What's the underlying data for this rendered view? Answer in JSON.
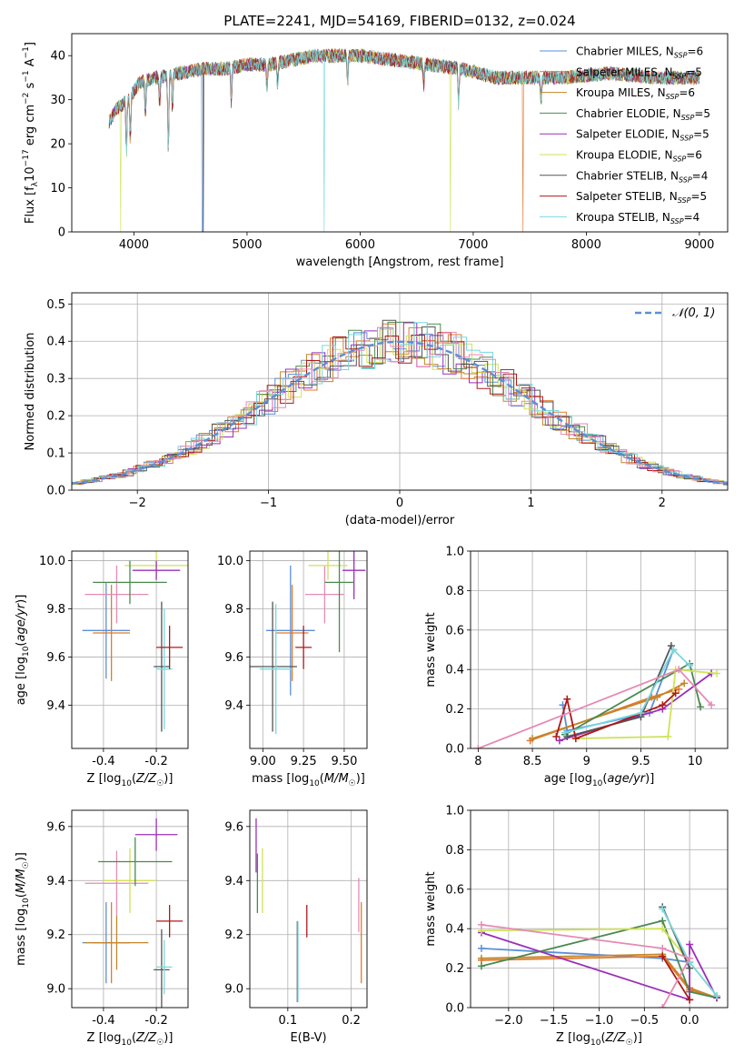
{
  "figure": {
    "title": "PLATE=2241, MJD=54169, FIBERID=0132, z=0.024"
  },
  "colors": {
    "Chabrier MILES": "#5a8fd8",
    "Salpeter MILES": "#e07a2e",
    "Kroupa MILES": "#c4862a",
    "Chabrier ELODIE": "#4a8a4e",
    "Salpeter ELODIE": "#9a2fb8",
    "Kroupa ELODIE": "#cfe25a",
    "Chabrier STELIB": "#555555",
    "Salpeter STELIB": "#b01818",
    "Kroupa STELIB": "#78d8e0",
    "extra": "#e58ab5"
  },
  "chart_data": [
    {
      "id": "spectrum",
      "type": "line",
      "title": "PLATE=2241, MJD=54169, FIBERID=0132, z=0.024",
      "xlabel": "wavelength [Angstrom, rest frame]",
      "ylabel": "Flux [f_λ10^-17 erg cm^-2 s^-1 A^-1]",
      "xlim": [
        3450,
        9250
      ],
      "ylim": [
        0,
        45
      ],
      "xticks": [
        4000,
        5000,
        6000,
        7000,
        8000,
        9000
      ],
      "yticks": [
        0,
        10,
        20,
        30,
        40
      ],
      "legend_position": "top-right",
      "legend": [
        {
          "name": "Chabrier MILES",
          "nssp": "6"
        },
        {
          "name": "Salpeter MILES",
          "nssp": "5"
        },
        {
          "name": "Kroupa MILES",
          "nssp": "6"
        },
        {
          "name": "Chabrier ELODIE",
          "nssp": "5"
        },
        {
          "name": "Salpeter ELODIE",
          "nssp": "5"
        },
        {
          "name": "Kroupa ELODIE",
          "nssp": "6"
        },
        {
          "name": "Chabrier STELIB",
          "nssp": "4"
        },
        {
          "name": "Salpeter STELIB",
          "nssp": "5"
        },
        {
          "name": "Kroupa STELIB",
          "nssp": "4"
        }
      ],
      "continuum": [
        [
          3780,
          25
        ],
        [
          3850,
          28
        ],
        [
          3950,
          30
        ],
        [
          4050,
          34
        ],
        [
          4200,
          35
        ],
        [
          4400,
          36
        ],
        [
          4600,
          37
        ],
        [
          4800,
          37
        ],
        [
          5000,
          38
        ],
        [
          5200,
          38
        ],
        [
          5400,
          39
        ],
        [
          5600,
          40
        ],
        [
          5800,
          40
        ],
        [
          6000,
          40
        ],
        [
          6300,
          39
        ],
        [
          6600,
          38
        ],
        [
          6900,
          37
        ],
        [
          7200,
          35
        ],
        [
          7500,
          35
        ],
        [
          7800,
          35
        ],
        [
          8200,
          36
        ],
        [
          8600,
          35
        ],
        [
          9000,
          35
        ]
      ],
      "dips": [
        [
          3934,
          12
        ],
        [
          3968,
          10
        ],
        [
          4101,
          8
        ],
        [
          4227,
          6
        ],
        [
          4304,
          18
        ],
        [
          4340,
          8
        ],
        [
          4861,
          8
        ],
        [
          5175,
          6
        ],
        [
          5270,
          5
        ],
        [
          5890,
          6
        ],
        [
          6563,
          5
        ],
        [
          6870,
          8
        ],
        [
          7600,
          5
        ]
      ],
      "artifacts": [
        {
          "series": "Kroupa ELODIE",
          "x": 3880,
          "y": 0
        },
        {
          "series": "Chabrier MILES",
          "x": 4605,
          "y": 0
        },
        {
          "series": "Chabrier STELIB",
          "x": 4615,
          "y": 0
        },
        {
          "series": "Kroupa STELIB",
          "x": 5680,
          "y": 0
        },
        {
          "series": "Kroupa ELODIE",
          "x": 6800,
          "y": 0
        },
        {
          "series": "Salpeter MILES",
          "x": 7440,
          "y": 0
        }
      ]
    },
    {
      "id": "residuals",
      "type": "step",
      "xlabel": "(data-model)/error",
      "ylabel": "Normed distribution",
      "xlim": [
        -2.5,
        2.5
      ],
      "ylim": [
        0,
        0.53
      ],
      "xticks": [
        -2,
        -1,
        0,
        1,
        2
      ],
      "xtick_labels": [
        "−2",
        "−1",
        "0",
        "1",
        "2"
      ],
      "yticks": [
        0.0,
        0.1,
        0.2,
        0.3,
        0.4,
        0.5
      ],
      "legend_position": "top-right",
      "reference": {
        "label": "𝒩(0, 1)",
        "mean": 0,
        "sigma": 1
      }
    },
    {
      "id": "age-vs-Z",
      "type": "errorbar",
      "xlabel": "Z [log10(Z/Z☉)]",
      "ylabel": "age [log10(age/yr)]",
      "xlim": [
        -0.52,
        -0.08
      ],
      "ylim": [
        9.22,
        10.04
      ],
      "xticks": [
        -0.4,
        -0.2
      ],
      "yticks": [
        9.4,
        9.6,
        9.8,
        10.0
      ],
      "points": [
        {
          "s": "Chabrier MILES",
          "x": -0.39,
          "xe": 0.09,
          "y": 9.71,
          "ye": 0.2
        },
        {
          "s": "Salpeter MILES",
          "x": -0.37,
          "xe": 0.07,
          "y": 9.7,
          "ye": 0.2
        },
        {
          "s": "extra",
          "x": -0.35,
          "xe": 0.12,
          "y": 9.86,
          "ye": 0.12
        },
        {
          "s": "Kroupa ELODIE",
          "x": -0.2,
          "xe": 0.12,
          "y": 9.98,
          "ye": 0.06
        },
        {
          "s": "Salpeter ELODIE",
          "x": -0.2,
          "xe": 0.09,
          "y": 9.96,
          "ye": 0.04
        },
        {
          "s": "Chabrier ELODIE",
          "x": -0.3,
          "xe": 0.14,
          "y": 9.91,
          "ye": 0.09
        },
        {
          "s": "Chabrier STELIB",
          "x": -0.18,
          "xe": 0.03,
          "y": 9.56,
          "ye": 0.27
        },
        {
          "s": "Kroupa STELIB",
          "x": -0.17,
          "xe": 0.03,
          "y": 9.55,
          "ye": 0.25
        },
        {
          "s": "Salpeter STELIB",
          "x": -0.15,
          "xe": 0.05,
          "y": 9.64,
          "ye": 0.09
        }
      ]
    },
    {
      "id": "age-vs-mass",
      "type": "errorbar",
      "xlabel": "mass [log10(M/M☉)]",
      "ylabel": "",
      "xlim": [
        8.92,
        9.64
      ],
      "ylim": [
        9.22,
        10.04
      ],
      "xticks": [
        9.0,
        9.25,
        9.5
      ],
      "xtick_labels": [
        "9.00",
        "9.25",
        "9.50"
      ],
      "yticks": [
        9.4,
        9.6,
        9.8,
        10.0
      ],
      "points": [
        {
          "s": "Chabrier MILES",
          "x": 9.17,
          "xe": 0.15,
          "y": 9.71,
          "ye": 0.27
        },
        {
          "s": "Salpeter MILES",
          "x": 9.18,
          "xe": 0.1,
          "y": 9.7,
          "ye": 0.2
        },
        {
          "s": "extra",
          "x": 9.38,
          "xe": 0.12,
          "y": 9.86,
          "ye": 0.12
        },
        {
          "s": "Kroupa ELODIE",
          "x": 9.4,
          "xe": 0.12,
          "y": 9.98,
          "ye": 0.06
        },
        {
          "s": "Salpeter ELODIE",
          "x": 9.56,
          "xe": 0.07,
          "y": 9.96,
          "ye": 0.12
        },
        {
          "s": "Chabrier ELODIE",
          "x": 9.47,
          "xe": 0.09,
          "y": 9.91,
          "ye": 0.29
        },
        {
          "s": "Chabrier STELIB",
          "x": 9.06,
          "xe": 0.15,
          "y": 9.56,
          "ye": 0.27
        },
        {
          "s": "Kroupa STELIB",
          "x": 9.08,
          "xe": 0.1,
          "y": 9.55,
          "ye": 0.27
        },
        {
          "s": "Salpeter STELIB",
          "x": 9.25,
          "xe": 0.05,
          "y": 9.64,
          "ye": 0.09
        }
      ]
    },
    {
      "id": "weight-vs-age",
      "type": "line",
      "xlabel": "age [log10(age/yr)]",
      "ylabel": "mass weight",
      "xlim": [
        7.93,
        10.3
      ],
      "ylim": [
        0,
        1.0
      ],
      "xticks": [
        8.0,
        8.5,
        9.0,
        9.5,
        10.0
      ],
      "yticks": [
        0.0,
        0.2,
        0.4,
        0.6,
        0.8,
        1.0
      ],
      "series": [
        {
          "s": "Chabrier MILES",
          "x": [
            8.78,
            8.82,
            9.58,
            9.8
          ],
          "y": [
            0.22,
            0.09,
            0.18,
            0.5
          ]
        },
        {
          "s": "Salpeter MILES",
          "x": [
            8.48,
            9.6,
            9.85
          ],
          "y": [
            0.04,
            0.26,
            0.3
          ]
        },
        {
          "s": "Kroupa MILES",
          "x": [
            8.5,
            9.65,
            9.9
          ],
          "y": [
            0.05,
            0.26,
            0.33
          ]
        },
        {
          "s": "Chabrier ELODIE",
          "x": [
            8.8,
            9.95,
            10.05
          ],
          "y": [
            0.07,
            0.43,
            0.21
          ]
        },
        {
          "s": "Salpeter ELODIE",
          "x": [
            8.75,
            9.7,
            10.15
          ],
          "y": [
            0.04,
            0.2,
            0.38
          ]
        },
        {
          "s": "Kroupa ELODIE",
          "x": [
            8.9,
            9.75,
            9.82,
            10.2
          ],
          "y": [
            0.05,
            0.06,
            0.4,
            0.38
          ]
        },
        {
          "s": "Chabrier STELIB",
          "x": [
            8.82,
            9.5,
            9.78
          ],
          "y": [
            0.06,
            0.16,
            0.52
          ]
        },
        {
          "s": "Salpeter STELIB",
          "x": [
            8.72,
            8.82,
            8.9,
            9.7,
            9.82
          ],
          "y": [
            0.06,
            0.25,
            0.05,
            0.22,
            0.28
          ]
        },
        {
          "s": "Kroupa STELIB",
          "x": [
            8.8,
            9.5,
            9.8,
            9.95
          ],
          "y": [
            0.08,
            0.18,
            0.5,
            0.42
          ]
        },
        {
          "s": "extra",
          "x": [
            8.0,
            9.85,
            10.15
          ],
          "y": [
            0.0,
            0.4,
            0.22
          ]
        }
      ]
    },
    {
      "id": "mass-vs-Z",
      "type": "errorbar",
      "xlabel": "Z [log10(Z/Z☉)]",
      "ylabel": "mass [log10(M/M☉)]",
      "xlim": [
        -0.52,
        -0.08
      ],
      "ylim": [
        8.93,
        9.66
      ],
      "xticks": [
        -0.4,
        -0.2
      ],
      "yticks": [
        9.0,
        9.2,
        9.4,
        9.6
      ],
      "points": [
        {
          "s": "Chabrier MILES",
          "x": -0.39,
          "xe": 0.09,
          "y": 9.17,
          "ye": 0.15
        },
        {
          "s": "Salpeter MILES",
          "x": -0.37,
          "xe": 0.07,
          "y": 9.17,
          "ye": 0.15
        },
        {
          "s": "Kroupa MILES",
          "x": -0.35,
          "xe": 0.12,
          "y": 9.17,
          "ye": 0.1
        },
        {
          "s": "extra",
          "x": -0.35,
          "xe": 0.12,
          "y": 9.39,
          "ye": 0.12
        },
        {
          "s": "Kroupa ELODIE",
          "x": -0.3,
          "xe": 0.1,
          "y": 9.4,
          "ye": 0.12
        },
        {
          "s": "Salpeter ELODIE",
          "x": -0.2,
          "xe": 0.08,
          "y": 9.57,
          "ye": 0.06
        },
        {
          "s": "Chabrier ELODIE",
          "x": -0.28,
          "xe": 0.14,
          "y": 9.47,
          "ye": 0.09
        },
        {
          "s": "Chabrier STELIB",
          "x": -0.18,
          "xe": 0.03,
          "y": 9.07,
          "ye": 0.15
        },
        {
          "s": "Kroupa STELIB",
          "x": -0.17,
          "xe": 0.03,
          "y": 9.08,
          "ye": 0.1
        },
        {
          "s": "Salpeter STELIB",
          "x": -0.15,
          "xe": 0.05,
          "y": 9.25,
          "ye": 0.06
        }
      ]
    },
    {
      "id": "mass-vs-EBV",
      "type": "errorbar",
      "xlabel": "E(B-V)",
      "ylabel": "",
      "xlim": [
        0.04,
        0.225
      ],
      "ylim": [
        8.93,
        9.66
      ],
      "xticks": [
        0.1,
        0.2
      ],
      "yticks": [
        9.0,
        9.2,
        9.4,
        9.6
      ],
      "points": [
        {
          "s": "Salpeter ELODIE",
          "x": 0.05,
          "xe": 0,
          "y": 9.53,
          "ye": 0.1
        },
        {
          "s": "Chabrier ELODIE",
          "x": 0.052,
          "xe": 0,
          "y": 9.39,
          "ye": 0.11
        },
        {
          "s": "Kroupa ELODIE",
          "x": 0.06,
          "xe": 0,
          "y": 9.4,
          "ye": 0.12
        },
        {
          "s": "Chabrier STELIB",
          "x": 0.115,
          "xe": 0,
          "y": 9.1,
          "ye": 0.15
        },
        {
          "s": "Kroupa STELIB",
          "x": 0.116,
          "xe": 0,
          "y": 9.1,
          "ye": 0.15
        },
        {
          "s": "Salpeter STELIB",
          "x": 0.13,
          "xe": 0,
          "y": 9.25,
          "ye": 0.06
        },
        {
          "s": "extra",
          "x": 0.212,
          "xe": 0,
          "y": 9.31,
          "ye": 0.1
        },
        {
          "s": "Salpeter MILES",
          "x": 0.216,
          "xe": 0,
          "y": 9.17,
          "ye": 0.15
        }
      ]
    },
    {
      "id": "weight-vs-Z",
      "type": "line",
      "xlabel": "Z [log10(Z/Z☉)]",
      "ylabel": "mass weight",
      "xlim": [
        -2.42,
        0.42
      ],
      "ylim": [
        0,
        1.0
      ],
      "xticks": [
        -2.0,
        -1.5,
        -1.0,
        -0.5,
        0.0
      ],
      "xtick_labels": [
        "−2.0",
        "−1.5",
        "−1.0",
        "−0.5",
        "0.0"
      ],
      "yticks": [
        0.0,
        0.2,
        0.4,
        0.6,
        0.8,
        1.0
      ],
      "series": [
        {
          "s": "Chabrier MILES",
          "x": [
            -2.3,
            -0.3,
            0.0
          ],
          "y": [
            0.3,
            0.25,
            0.23
          ]
        },
        {
          "s": "Salpeter MILES",
          "x": [
            -2.3,
            -0.3,
            0.0,
            0.3
          ],
          "y": [
            0.24,
            0.26,
            0.09,
            0.05
          ]
        },
        {
          "s": "Kroupa MILES",
          "x": [
            -2.3,
            -0.3,
            0.0,
            0.3
          ],
          "y": [
            0.25,
            0.27,
            0.1,
            0.05
          ]
        },
        {
          "s": "Chabrier ELODIE",
          "x": [
            -2.3,
            -0.3,
            0.0,
            0.3
          ],
          "y": [
            0.21,
            0.44,
            0.08,
            0.05
          ]
        },
        {
          "s": "Salpeter ELODIE",
          "x": [
            -2.3,
            0.0,
            0.0,
            0.3
          ],
          "y": [
            0.38,
            0.04,
            0.32,
            0.05
          ]
        },
        {
          "s": "Kroupa ELODIE",
          "x": [
            -2.3,
            -0.3,
            0.3
          ],
          "y": [
            0.39,
            0.4,
            0.06
          ]
        },
        {
          "s": "Chabrier STELIB",
          "x": [
            -0.3,
            0.0
          ],
          "y": [
            0.51,
            0.2
          ]
        },
        {
          "s": "Salpeter STELIB",
          "x": [
            -0.3,
            0.0
          ],
          "y": [
            0.26,
            0.04
          ]
        },
        {
          "s": "Kroupa STELIB",
          "x": [
            -0.3,
            0.0,
            0.3
          ],
          "y": [
            0.5,
            0.23,
            0.06
          ]
        },
        {
          "s": "extra",
          "x": [
            -2.3,
            -0.3,
            0.0,
            -0.3
          ],
          "y": [
            0.42,
            0.3,
            0.25,
            0.0
          ]
        }
      ]
    }
  ]
}
